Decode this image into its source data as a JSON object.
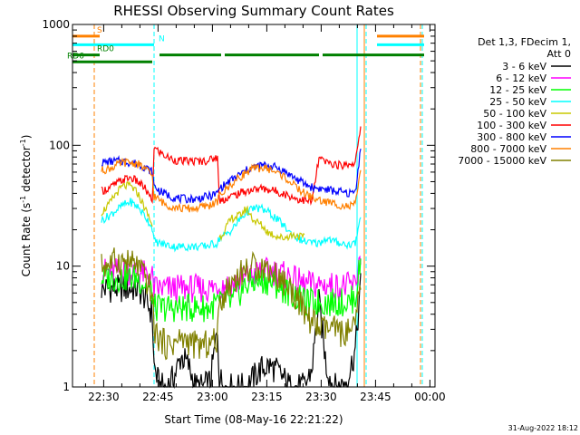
{
  "chart_data": {
    "type": "line",
    "title": "RHESSI Observing Summary Count Rates",
    "xlabel": "Start Time (08-May-16 22:21:22)",
    "ylabel_main": "Count Rate (s",
    "ylabel_sup1": "-1",
    "ylabel_mid": " detector",
    "ylabel_sup2": "-1",
    "ylabel_end": ")",
    "x_range_minutes": [
      0,
      100
    ],
    "y_scale": "log",
    "ylim": [
      1,
      1000
    ],
    "x_ticks": [
      {
        "m": 8.6,
        "label": "22:30"
      },
      {
        "m": 23.6,
        "label": "22:45"
      },
      {
        "m": 38.6,
        "label": "23:00"
      },
      {
        "m": 53.6,
        "label": "23:15"
      },
      {
        "m": 68.6,
        "label": "23:30"
      },
      {
        "m": 83.6,
        "label": "23:45"
      },
      {
        "m": 98.6,
        "label": "00:00"
      }
    ],
    "y_ticks": [
      {
        "v": 1,
        "label": "1"
      },
      {
        "v": 10,
        "label": "10"
      },
      {
        "v": 100,
        "label": "100"
      },
      {
        "v": 1000,
        "label": "1000"
      }
    ],
    "legend_header": [
      "Det 1,3, FDecim 1,",
      "Att 0"
    ],
    "series": [
      {
        "name": "3 - 6 keV",
        "color": "#000000",
        "x": [
          0,
          2,
          4,
          6,
          8,
          10,
          12,
          14,
          16,
          18,
          20,
          22,
          22.5,
          24,
          26,
          28,
          30,
          32,
          34,
          36,
          38,
          40,
          40.5,
          42,
          44,
          46,
          48,
          50,
          52,
          54,
          56,
          58,
          60,
          62,
          64,
          66,
          68,
          70,
          72,
          74,
          76,
          78,
          79.5
        ],
        "y": [
          null,
          null,
          null,
          null,
          6.5,
          6.5,
          6.5,
          6.5,
          6.5,
          6.5,
          5.5,
          4,
          1.5,
          1,
          1,
          1.2,
          1.8,
          1.5,
          1,
          1,
          1.1,
          3,
          1.2,
          1,
          1,
          1,
          1,
          1.2,
          1.4,
          1.5,
          1.4,
          1.2,
          1,
          1,
          1,
          1.4,
          5,
          1.5,
          1,
          1,
          1.2,
          2,
          7
        ]
      },
      {
        "name": "6 - 12 keV",
        "color": "#ff00ff",
        "x": [
          0,
          2,
          4,
          6,
          8,
          10,
          12,
          14,
          16,
          18,
          20,
          22,
          22.5,
          24,
          26,
          28,
          30,
          32,
          34,
          36,
          38,
          40,
          40.5,
          42,
          44,
          46,
          48,
          50,
          52,
          54,
          56,
          58,
          60,
          62,
          64,
          66,
          68,
          70,
          72,
          74,
          76,
          78,
          79.5
        ],
        "y": [
          null,
          null,
          null,
          null,
          9,
          9,
          9,
          9,
          9,
          9,
          8.5,
          8,
          6.5,
          6.5,
          6.5,
          6.5,
          6.5,
          6.5,
          6.5,
          6.5,
          6.5,
          7,
          6.8,
          7,
          7,
          7.5,
          8,
          8.5,
          9,
          9,
          9,
          8.5,
          8,
          7.5,
          7,
          7,
          7,
          7,
          6.8,
          6.8,
          6.8,
          7,
          13
        ]
      },
      {
        "name": "12 - 25 keV",
        "color": "#00ff00",
        "x": [
          0,
          2,
          4,
          6,
          8,
          10,
          12,
          14,
          16,
          18,
          20,
          22,
          22.5,
          24,
          26,
          28,
          30,
          32,
          34,
          36,
          38,
          40,
          40.5,
          42,
          44,
          46,
          48,
          50,
          52,
          54,
          56,
          58,
          60,
          62,
          64,
          66,
          68,
          70,
          72,
          74,
          76,
          78,
          79.5
        ],
        "y": [
          null,
          null,
          null,
          null,
          8,
          8,
          8,
          8,
          8,
          8,
          7,
          6,
          4.5,
          4.5,
          4.5,
          4.5,
          4.5,
          4.5,
          4.5,
          4.5,
          4.5,
          5,
          4.8,
          5,
          5,
          6,
          7,
          7.5,
          7.5,
          7.5,
          7,
          6.5,
          6,
          5.5,
          5,
          5,
          5,
          5,
          5,
          5,
          5,
          5.5,
          11
        ]
      },
      {
        "name": "25 - 50 keV",
        "color": "#00ffff",
        "x": [
          0,
          2,
          4,
          6,
          8,
          10,
          12,
          14,
          16,
          18,
          20,
          22,
          22.5,
          24,
          26,
          28,
          30,
          32,
          34,
          36,
          38,
          40,
          40.5,
          42,
          44,
          46,
          48,
          50,
          52,
          54,
          56,
          58,
          60,
          62,
          64,
          66,
          68,
          70,
          72,
          74,
          76,
          78,
          79.5
        ],
        "y": [
          null,
          null,
          null,
          null,
          24,
          26,
          29,
          32,
          34,
          31,
          26,
          21,
          16,
          15.5,
          15,
          14.5,
          14.5,
          14.5,
          14.5,
          14.5,
          15,
          15.5,
          17,
          18,
          20,
          24,
          28,
          30,
          30,
          28,
          25,
          22,
          19,
          17,
          16,
          15.5,
          15.5,
          17,
          16,
          15.5,
          15,
          15.5,
          26
        ]
      },
      {
        "name": "50 - 100 keV",
        "color": "#c8c800",
        "x": [
          0,
          2,
          4,
          6,
          8,
          10,
          12,
          14,
          16,
          18,
          20,
          22,
          22.5,
          24,
          26,
          28,
          30,
          32,
          34,
          36,
          38,
          40,
          40.5,
          42,
          44,
          46,
          48,
          50,
          52,
          54,
          56,
          58,
          60,
          62,
          64,
          66,
          68,
          70,
          72,
          74,
          76,
          78,
          79.5
        ],
        "y": [
          null,
          null,
          null,
          null,
          28,
          32,
          40,
          46,
          46,
          40,
          30,
          22,
          null,
          null,
          null,
          null,
          null,
          null,
          null,
          null,
          null,
          null,
          17,
          20,
          25,
          26,
          30,
          24,
          22,
          19,
          18,
          17,
          18,
          18,
          17,
          null,
          null,
          null,
          null,
          null,
          null,
          null,
          null
        ]
      },
      {
        "name": "100 - 300 keV",
        "color": "#ff0000",
        "x": [
          0,
          2,
          4,
          6,
          8,
          10,
          12,
          14,
          16,
          18,
          20,
          22,
          22.5,
          24,
          26,
          28,
          30,
          32,
          34,
          36,
          38,
          40,
          40.5,
          42,
          44,
          46,
          48,
          50,
          52,
          54,
          56,
          58,
          60,
          62,
          64,
          66,
          68,
          70,
          72,
          74,
          76,
          78,
          79.5
        ],
        "y": [
          null,
          null,
          null,
          null,
          42,
          44,
          48,
          52,
          54,
          50,
          44,
          34,
          95,
          88,
          80,
          76,
          74,
          74,
          74,
          74,
          76,
          80,
          35,
          36,
          38,
          40,
          42,
          43,
          44,
          43,
          42,
          40,
          38,
          36,
          35,
          34,
          78,
          72,
          70,
          68,
          70,
          72,
          135
        ]
      },
      {
        "name": "300 - 800 keV",
        "color": "#0000ff",
        "x": [
          0,
          2,
          4,
          6,
          8,
          10,
          12,
          14,
          16,
          18,
          20,
          22,
          22.5,
          24,
          26,
          28,
          30,
          32,
          34,
          36,
          38,
          40,
          40.5,
          42,
          44,
          46,
          48,
          50,
          52,
          54,
          56,
          58,
          60,
          62,
          64,
          66,
          68,
          70,
          72,
          74,
          76,
          78,
          79.5
        ],
        "y": [
          null,
          null,
          null,
          null,
          72,
          73,
          74,
          74,
          72,
          70,
          66,
          60,
          46,
          42,
          39,
          37,
          36,
          36,
          36,
          37,
          38,
          40,
          44,
          47,
          52,
          57,
          62,
          66,
          68,
          68,
          66,
          62,
          57,
          52,
          48,
          45,
          44,
          43,
          42,
          41,
          40,
          41,
          95
        ]
      },
      {
        "name": "800 - 7000 keV",
        "color": "#ff8000",
        "x": [
          0,
          2,
          4,
          6,
          8,
          10,
          12,
          14,
          16,
          18,
          20,
          22,
          22.5,
          24,
          26,
          28,
          30,
          32,
          34,
          36,
          38,
          40,
          40.5,
          42,
          44,
          46,
          48,
          50,
          52,
          54,
          56,
          58,
          60,
          62,
          64,
          66,
          68,
          70,
          72,
          74,
          76,
          78,
          79.5
        ],
        "y": [
          null,
          null,
          null,
          null,
          62,
          64,
          68,
          72,
          72,
          70,
          64,
          56,
          38,
          35,
          32,
          31,
          30,
          30,
          30,
          31,
          32,
          34,
          38,
          42,
          48,
          54,
          60,
          64,
          65,
          64,
          60,
          56,
          50,
          44,
          40,
          37,
          35,
          34,
          33,
          32,
          31,
          32,
          62
        ]
      },
      {
        "name": "7000 - 15000 keV",
        "color": "#808000",
        "x": [
          0,
          2,
          4,
          6,
          8,
          10,
          12,
          14,
          16,
          18,
          20,
          22,
          22.5,
          24,
          26,
          28,
          30,
          32,
          34,
          36,
          38,
          40,
          40.5,
          42,
          44,
          46,
          48,
          50,
          52,
          54,
          56,
          58,
          60,
          62,
          64,
          66,
          68,
          70,
          72,
          74,
          76,
          78,
          79.5
        ],
        "y": [
          null,
          null,
          null,
          null,
          10,
          10.5,
          11,
          11,
          10.5,
          10,
          8,
          6,
          3,
          2.5,
          2.2,
          2.3,
          2.5,
          2.4,
          2.2,
          2.2,
          2.3,
          2.5,
          5,
          6,
          7.5,
          8.5,
          9.5,
          10,
          10,
          9.5,
          8.5,
          7.5,
          6.5,
          5.5,
          4,
          3.5,
          3,
          3,
          3,
          2.8,
          2.8,
          3,
          8
        ]
      }
    ],
    "state_bars": [
      {
        "name": "S",
        "color": "#ff8000",
        "value": 800,
        "label": "S",
        "segments": [
          [
            0,
            7.5
          ],
          [
            84,
            97
          ]
        ]
      },
      {
        "name": "N",
        "color": "#00ffff",
        "value": 680,
        "label": "N",
        "segments": [
          [
            0,
            22.5
          ],
          [
            84,
            97
          ]
        ]
      },
      {
        "name": "RD0",
        "color": "#008000",
        "value": 560,
        "label": "RD0",
        "segments": [
          [
            0,
            7.5
          ],
          [
            24,
            41
          ],
          [
            42,
            68
          ],
          [
            69,
            97
          ]
        ]
      },
      {
        "name": "RD6",
        "color": "#008000",
        "value": 490,
        "label": "RD6",
        "segments": [
          [
            0,
            22
          ]
        ]
      }
    ],
    "vertical_markers": [
      {
        "m": 0,
        "color": "#00ffff",
        "style": "solid"
      },
      {
        "m": 6,
        "color": "#ff8000",
        "style": "dashed"
      },
      {
        "m": 22.5,
        "color": "#00ffff",
        "style": "dashed"
      },
      {
        "m": 78.5,
        "color": "#00ffff",
        "style": "solid"
      },
      {
        "m": 80.5,
        "color": "#ff8000",
        "style": "solid"
      },
      {
        "m": 81,
        "color": "#00ffff",
        "style": "dashed"
      },
      {
        "m": 96.5,
        "color": "#00ffff",
        "style": "dashed"
      },
      {
        "m": 96,
        "color": "#ff8000",
        "style": "dashed"
      }
    ]
  },
  "footer": {
    "timestamp": "31-Aug-2022 18:12"
  }
}
